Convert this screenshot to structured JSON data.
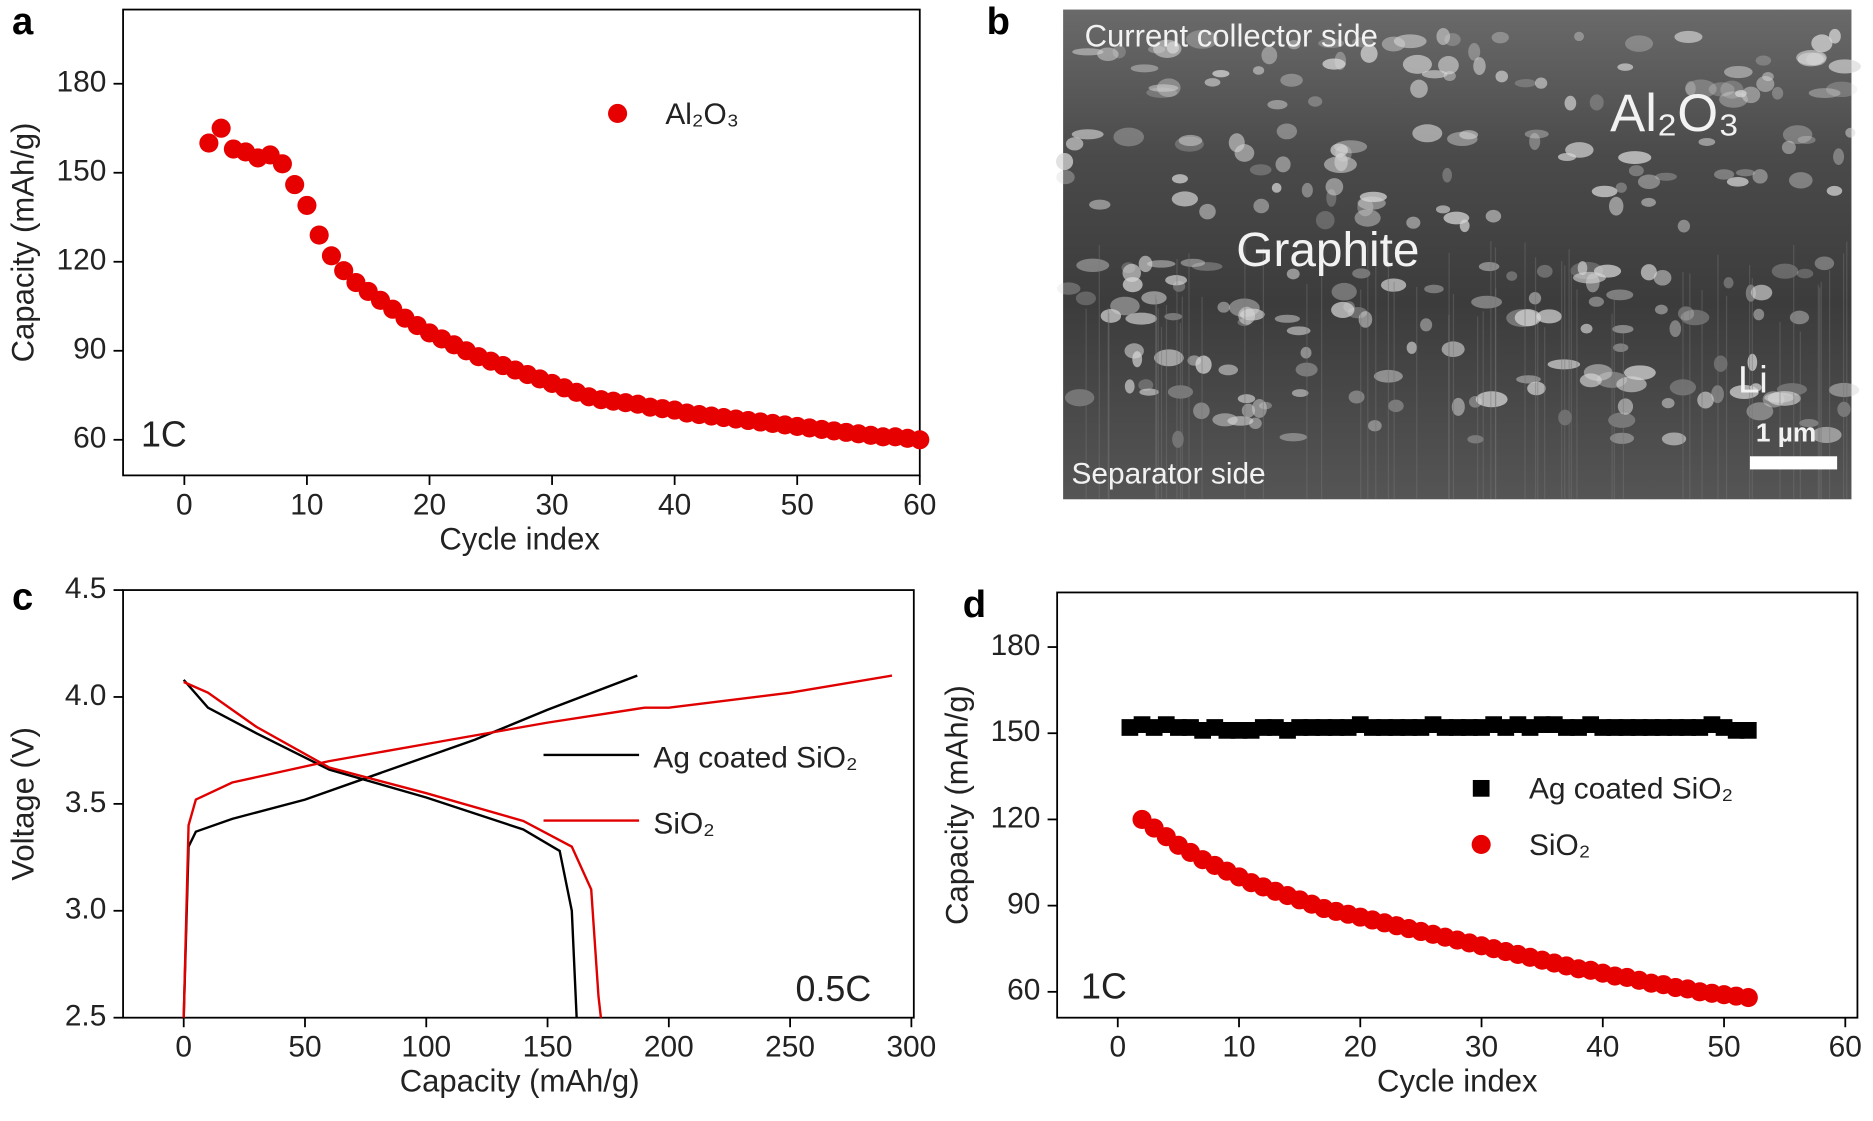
{
  "chart_data": [
    {
      "type": "scatter",
      "panel_label": "a",
      "xlabel": "Cycle index",
      "ylabel": "Capacity (mAh/g)",
      "annotation": "1C",
      "xlim": [
        -5,
        60
      ],
      "ylim": [
        48,
        205
      ],
      "xticks": [
        0,
        10,
        20,
        30,
        40,
        50,
        60
      ],
      "yticks": [
        60,
        90,
        120,
        150,
        180
      ],
      "series": [
        {
          "name": "Al₂O₃",
          "color": "#e60000",
          "marker": "circle",
          "x": [
            2,
            3,
            4,
            5,
            6,
            7,
            8,
            9,
            10,
            11,
            12,
            13,
            14,
            15,
            16,
            17,
            18,
            19,
            20,
            21,
            22,
            23,
            24,
            25,
            26,
            27,
            28,
            29,
            30,
            31,
            32,
            33,
            34,
            35,
            36,
            37,
            38,
            39,
            40,
            41,
            42,
            43,
            44,
            45,
            46,
            47,
            48,
            49,
            50,
            51,
            52,
            53,
            54,
            55,
            56,
            57,
            58,
            59,
            60
          ],
          "values": [
            160,
            165,
            158,
            157,
            155,
            156,
            153,
            146,
            139,
            129,
            122,
            117,
            113,
            110,
            107,
            104,
            101,
            98.5,
            96,
            94,
            92,
            90,
            88,
            86.5,
            85,
            83.5,
            82,
            80.5,
            79,
            77.5,
            76,
            74.5,
            73.5,
            73,
            72.5,
            72,
            71,
            70.5,
            70,
            69,
            68.5,
            68,
            67.5,
            67,
            66.5,
            66,
            65.5,
            65,
            64.5,
            64,
            63.5,
            63,
            62.5,
            62,
            61.5,
            61,
            61,
            60.5,
            60
          ]
        }
      ]
    },
    {
      "type": "line",
      "panel_label": "c",
      "xlabel": "Capacity (mAh/g)",
      "ylabel": "Voltage (V)",
      "annotation": "0.5C",
      "xlim": [
        -25,
        301
      ],
      "ylim": [
        2.5,
        4.5
      ],
      "xticks": [
        0,
        50,
        100,
        150,
        200,
        250,
        300
      ],
      "yticks": [
        {
          "value": 2.5,
          "label": "2.5"
        },
        {
          "value": 3,
          "label": "3.0"
        },
        {
          "value": 3.5,
          "label": "3.5"
        },
        {
          "value": 4,
          "label": "4.0"
        },
        {
          "value": 4.5,
          "label": "4.5"
        }
      ],
      "series": [
        {
          "name": "Ag coated SiO₂",
          "color": "#000000",
          "x": [
            0,
            2,
            5,
            20,
            50,
            80,
            120,
            150,
            187
          ],
          "values": [
            2.5,
            3.3,
            3.37,
            3.43,
            3.52,
            3.64,
            3.8,
            3.94,
            4.1
          ]
        },
        {
          "color": "#000000",
          "x": [
            0,
            10,
            30,
            60,
            100,
            140,
            155,
            160,
            162
          ],
          "values": [
            4.08,
            3.95,
            3.83,
            3.66,
            3.53,
            3.38,
            3.28,
            3.0,
            2.5
          ]
        },
        {
          "name": "SiO₂",
          "color": "#e00000",
          "x": [
            0,
            2,
            5,
            20,
            60,
            100,
            150,
            190,
            200,
            250,
            292
          ],
          "values": [
            2.5,
            3.4,
            3.52,
            3.6,
            3.7,
            3.78,
            3.88,
            3.95,
            3.95,
            4.02,
            4.1
          ]
        },
        {
          "color": "#e00000",
          "x": [
            0,
            10,
            30,
            60,
            100,
            140,
            160,
            168,
            171,
            172
          ],
          "values": [
            4.07,
            4.02,
            3.86,
            3.67,
            3.55,
            3.42,
            3.3,
            3.1,
            2.6,
            2.5
          ]
        }
      ]
    },
    {
      "type": "scatter",
      "panel_label": "d",
      "xlabel": "Cycle index",
      "ylabel": "Capacity (mAh/g)",
      "annotation": "1C",
      "xlim": [
        -5,
        61
      ],
      "ylim": [
        51,
        199
      ],
      "xticks": [
        0,
        10,
        20,
        30,
        40,
        50,
        60
      ],
      "yticks": [
        60,
        90,
        120,
        150,
        180
      ],
      "series": [
        {
          "name": "Ag coated SiO₂",
          "color": "#000000",
          "marker": "square",
          "x": [
            1,
            2,
            3,
            4,
            5,
            6,
            7,
            8,
            9,
            10,
            11,
            12,
            13,
            14,
            15,
            16,
            17,
            18,
            19,
            20,
            21,
            22,
            23,
            24,
            25,
            26,
            27,
            28,
            29,
            30,
            31,
            32,
            33,
            34,
            35,
            36,
            37,
            38,
            39,
            40,
            41,
            42,
            43,
            44,
            45,
            46,
            47,
            48,
            49,
            50,
            51,
            52
          ],
          "values": [
            152,
            153,
            152,
            153,
            152,
            152,
            151,
            152,
            151,
            151,
            151,
            152,
            152,
            151,
            152,
            152,
            152,
            152,
            152,
            153,
            152,
            152,
            152,
            152,
            152,
            153,
            152,
            152,
            152,
            152,
            153,
            152,
            153,
            152,
            153,
            153,
            152,
            152,
            153,
            152,
            152,
            152,
            152,
            152,
            152,
            152,
            152,
            152,
            153,
            152,
            151,
            151
          ]
        },
        {
          "name": "SiO₂",
          "color": "#e60000",
          "marker": "circle",
          "x": [
            2,
            3,
            4,
            5,
            6,
            7,
            8,
            9,
            10,
            11,
            12,
            13,
            14,
            15,
            16,
            17,
            18,
            19,
            20,
            21,
            22,
            23,
            24,
            25,
            26,
            27,
            28,
            29,
            30,
            31,
            32,
            33,
            34,
            35,
            36,
            37,
            38,
            39,
            40,
            41,
            42,
            43,
            44,
            45,
            46,
            47,
            48,
            49,
            50,
            51,
            52
          ],
          "values": [
            120,
            117,
            114,
            111,
            108.5,
            106,
            104,
            102,
            100,
            98,
            96.5,
            95,
            93.5,
            92,
            90.5,
            89,
            88,
            87,
            86,
            85,
            84,
            83,
            82,
            81,
            80,
            79,
            78,
            77,
            76,
            75,
            74,
            73,
            72,
            71,
            70,
            69,
            68,
            67.5,
            66.5,
            65.5,
            65,
            64,
            63,
            62.5,
            61.5,
            61,
            60,
            59.5,
            59,
            58.5,
            58
          ]
        }
      ]
    }
  ],
  "micrograph": {
    "panel_label": "b",
    "labels": [
      "Current collector side",
      "Al₂O₃",
      "Graphite",
      "Li",
      "1 µm",
      "Separator side"
    ]
  }
}
